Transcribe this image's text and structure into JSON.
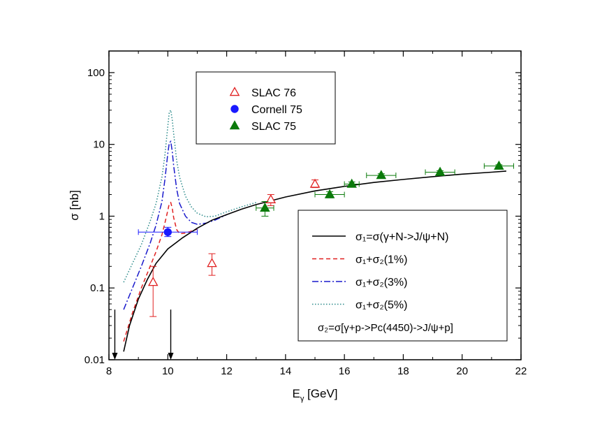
{
  "chart_data": {
    "type": "scatter",
    "title": "",
    "xlabel": {
      "main": "E",
      "sub": "γ",
      "rest": " [GeV]"
    },
    "ylabel": "σ [nb]",
    "xlim": [
      8,
      22
    ],
    "ylim": [
      0.01,
      200
    ],
    "yscale": "log",
    "xticks": [
      "8",
      "10",
      "12",
      "14",
      "16",
      "18",
      "20",
      "22"
    ],
    "yticks": [
      "0.01",
      "0.1",
      "1",
      "10",
      "100"
    ],
    "grid": false,
    "legends": [
      {
        "placement": "top-left",
        "entries": [
          {
            "text": "SLAC 76",
            "marker": "open-triangle",
            "color": "#e02020"
          },
          {
            "text": "Cornell 75",
            "marker": "filled-circle",
            "color": "#1a1aff"
          },
          {
            "text": "SLAC 75",
            "marker": "filled-triangle",
            "color": "#0a7a0a"
          }
        ]
      },
      {
        "placement": "bottom-right",
        "entries": [
          {
            "text": "σ₁=σ(γ+N->J/ψ+N)",
            "style": "solid",
            "color": "#000000"
          },
          {
            "text": "σ₁+σ₂(1%)",
            "style": "dashed",
            "color": "#e02020"
          },
          {
            "text": "σ₁+σ₂(3%)",
            "style": "dashdot",
            "color": "#1a1acc"
          },
          {
            "text": "σ₁+σ₂(5%)",
            "style": "dotted",
            "color": "#2a8a8a"
          },
          {
            "text": "σ₂=σ[γ+p->Pc(4450)->J/ψ+p]",
            "style": "none",
            "color": "#000000"
          }
        ]
      }
    ],
    "series": [
      {
        "name": "SLAC 76",
        "kind": "points",
        "marker": "open-triangle",
        "color": "#e02020",
        "points": [
          {
            "x": 9.5,
            "y": 0.12,
            "ylo": 0.04,
            "yhi": 0.2
          },
          {
            "x": 11.5,
            "y": 0.22,
            "ylo": 0.15,
            "yhi": 0.3
          },
          {
            "x": 13.5,
            "y": 1.7,
            "ylo": 1.4,
            "yhi": 2.0
          },
          {
            "x": 15.0,
            "y": 2.8,
            "ylo": 2.5,
            "yhi": 3.2
          }
        ]
      },
      {
        "name": "Cornell 75",
        "kind": "points",
        "marker": "filled-circle",
        "color": "#1a1aff",
        "points": [
          {
            "x": 10.0,
            "y": 0.6,
            "ylo": 0.52,
            "yhi": 0.7,
            "xlo": 9.0,
            "xhi": 11.0
          }
        ]
      },
      {
        "name": "SLAC 75",
        "kind": "points",
        "marker": "filled-triangle",
        "color": "#0a7a0a",
        "points": [
          {
            "x": 13.3,
            "y": 1.3,
            "ylo": 1.0,
            "yhi": 1.6,
            "xlo": 13.0,
            "xhi": 13.6
          },
          {
            "x": 15.5,
            "y": 2.0,
            "ylo": 1.8,
            "yhi": 2.2,
            "xlo": 15.0,
            "xhi": 16.0
          },
          {
            "x": 16.25,
            "y": 2.8,
            "ylo": 2.6,
            "yhi": 3.0,
            "xlo": 16.0,
            "xhi": 16.5
          },
          {
            "x": 17.25,
            "y": 3.7,
            "ylo": 3.5,
            "yhi": 3.9,
            "xlo": 16.75,
            "xhi": 17.75
          },
          {
            "x": 19.25,
            "y": 4.1,
            "ylo": 3.9,
            "yhi": 4.3,
            "xlo": 18.75,
            "xhi": 19.75
          },
          {
            "x": 21.25,
            "y": 5.0,
            "ylo": 4.8,
            "yhi": 5.2,
            "xlo": 20.75,
            "xhi": 21.75
          }
        ]
      },
      {
        "name": "σ₁+σ₂(5%)",
        "kind": "line",
        "style": "dotted",
        "color": "#2a8a8a",
        "x": [
          8.5,
          8.8,
          9.1,
          9.4,
          9.6,
          9.8,
          9.9,
          10.0,
          10.05,
          10.1,
          10.15,
          10.2,
          10.3,
          10.4,
          10.6,
          10.8,
          11.0,
          11.3,
          11.6,
          12.0,
          12.5,
          13.0
        ],
        "y": [
          0.12,
          0.22,
          0.4,
          0.85,
          1.5,
          3.5,
          7.0,
          18.0,
          28.0,
          30.0,
          22.0,
          14.0,
          6.0,
          3.5,
          1.9,
          1.35,
          1.1,
          0.98,
          1.0,
          1.15,
          1.35,
          1.55
        ]
      },
      {
        "name": "σ₁+σ₂(3%)",
        "kind": "line",
        "style": "dashdot",
        "color": "#1a1acc",
        "x": [
          8.5,
          8.8,
          9.1,
          9.4,
          9.6,
          9.8,
          9.9,
          10.0,
          10.05,
          10.1,
          10.15,
          10.2,
          10.3,
          10.4,
          10.6,
          10.8,
          11.0,
          11.3,
          11.6,
          12.0
        ],
        "y": [
          0.05,
          0.1,
          0.2,
          0.42,
          0.75,
          1.6,
          3.2,
          7.5,
          10.5,
          11.0,
          8.0,
          5.0,
          2.4,
          1.5,
          1.0,
          0.82,
          0.77,
          0.8,
          0.88,
          1.05
        ]
      },
      {
        "name": "σ₁+σ₂(1%)",
        "kind": "line",
        "style": "dashed",
        "color": "#e02020",
        "x": [
          8.5,
          8.8,
          9.1,
          9.4,
          9.6,
          9.8,
          9.9,
          10.0,
          10.05,
          10.1,
          10.15,
          10.2,
          10.3,
          10.4,
          10.6,
          10.8,
          11.0
        ],
        "y": [
          0.018,
          0.045,
          0.1,
          0.2,
          0.32,
          0.55,
          0.8,
          1.2,
          1.5,
          1.55,
          1.3,
          0.95,
          0.65,
          0.57,
          0.58,
          0.62,
          0.66
        ]
      },
      {
        "name": "σ₁=σ(γ+N->J/ψ+N)",
        "kind": "line",
        "style": "solid",
        "color": "#000000",
        "x": [
          8.5,
          8.7,
          9.0,
          9.3,
          9.6,
          10.0,
          10.5,
          11.0,
          11.5,
          12.0,
          12.5,
          13.0,
          14.0,
          15.0,
          16.0,
          17.0,
          18.0,
          19.0,
          20.0,
          21.0,
          21.5
        ],
        "y": [
          0.013,
          0.03,
          0.07,
          0.13,
          0.22,
          0.35,
          0.5,
          0.68,
          0.88,
          1.05,
          1.25,
          1.45,
          1.85,
          2.25,
          2.6,
          2.95,
          3.25,
          3.55,
          3.85,
          4.1,
          4.25
        ]
      }
    ],
    "annotations": [
      {
        "type": "arrow-down",
        "x": 8.2,
        "y_from": 0.05,
        "y_to": 0.01
      },
      {
        "type": "arrow-down",
        "x": 10.1,
        "y_from": 0.05,
        "y_to": 0.01
      }
    ]
  }
}
